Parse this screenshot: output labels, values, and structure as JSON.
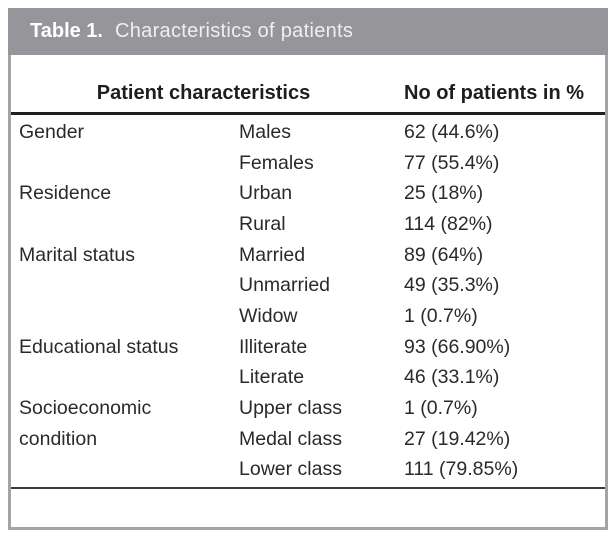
{
  "title": {
    "label": "Table 1.",
    "caption": "Characteristics of patients"
  },
  "columns": {
    "left": "Patient characteristics",
    "right": "No of patients in %"
  },
  "rows": [
    {
      "category": "Gender",
      "sub": "Males",
      "value": "62 (44.6%)"
    },
    {
      "category": "",
      "sub": "Females",
      "value": "77 (55.4%)"
    },
    {
      "category": "Residence",
      "sub": "Urban",
      "value": "25 (18%)"
    },
    {
      "category": "",
      "sub": "Rural",
      "value": "114 (82%)"
    },
    {
      "category": "Marital status",
      "sub": "Married",
      "value": "89 (64%)"
    },
    {
      "category": "",
      "sub": "Unmarried",
      "value": "49 (35.3%)"
    },
    {
      "category": "",
      "sub": "Widow",
      "value": "1 (0.7%)"
    },
    {
      "category": "Educational status",
      "sub": "Illiterate",
      "value": "93 (66.90%)"
    },
    {
      "category": "",
      "sub": "Literate",
      "value": "46 (33.1%)"
    },
    {
      "category": "Socioeconomic",
      "sub": "Upper class",
      "value": "1 (0.7%)"
    },
    {
      "category": "condition",
      "sub": "Medal class",
      "value": "27 (19.42%)"
    },
    {
      "category": "",
      "sub": "Lower class",
      "value": "111 (79.85%)"
    }
  ],
  "colors": {
    "title_bar": "#96969a",
    "title_text": "#ffffff",
    "body_text": "#2a2a2a",
    "outer_border": "#a3a4a7",
    "header_rule": "#1f1f1f",
    "bottom_rule": "#3a3a3a"
  }
}
